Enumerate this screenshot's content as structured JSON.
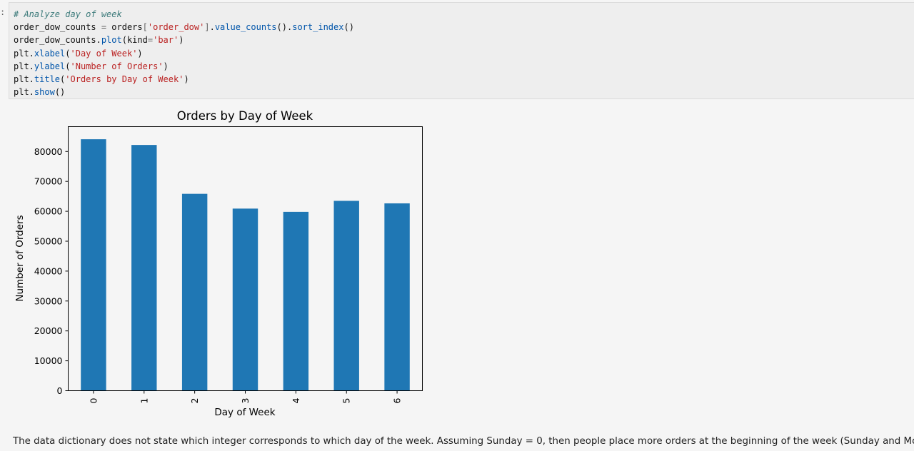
{
  "cell": {
    "prompt": ":",
    "code_lines": [
      [
        {
          "t": "# Analyze day of week",
          "c": "cm"
        }
      ],
      [
        {
          "t": "order_dow_counts ",
          "c": ""
        },
        {
          "t": "=",
          "c": "op"
        },
        {
          "t": " orders",
          "c": ""
        },
        {
          "t": "[",
          "c": "op"
        },
        {
          "t": "'order_dow'",
          "c": "st"
        },
        {
          "t": "]",
          "c": "op"
        },
        {
          "t": ".",
          "c": ""
        },
        {
          "t": "value_counts",
          "c": "fn"
        },
        {
          "t": "().",
          "c": ""
        },
        {
          "t": "sort_index",
          "c": "fn"
        },
        {
          "t": "()",
          "c": ""
        }
      ],
      [
        {
          "t": "order_dow_counts.",
          "c": ""
        },
        {
          "t": "plot",
          "c": "fn"
        },
        {
          "t": "(kind",
          "c": ""
        },
        {
          "t": "=",
          "c": "op"
        },
        {
          "t": "'bar'",
          "c": "st"
        },
        {
          "t": ")",
          "c": ""
        }
      ],
      [
        {
          "t": "plt.",
          "c": ""
        },
        {
          "t": "xlabel",
          "c": "fn"
        },
        {
          "t": "(",
          "c": ""
        },
        {
          "t": "'Day of Week'",
          "c": "st"
        },
        {
          "t": ")",
          "c": ""
        }
      ],
      [
        {
          "t": "plt.",
          "c": ""
        },
        {
          "t": "ylabel",
          "c": "fn"
        },
        {
          "t": "(",
          "c": ""
        },
        {
          "t": "'Number of Orders'",
          "c": "st"
        },
        {
          "t": ")",
          "c": ""
        }
      ],
      [
        {
          "t": "plt.",
          "c": ""
        },
        {
          "t": "title",
          "c": "fn"
        },
        {
          "t": "(",
          "c": ""
        },
        {
          "t": "'Orders by Day of Week'",
          "c": "st"
        },
        {
          "t": ")",
          "c": ""
        }
      ],
      [
        {
          "t": "plt.",
          "c": ""
        },
        {
          "t": "show",
          "c": "fn"
        },
        {
          "t": "()",
          "c": ""
        }
      ]
    ]
  },
  "chart_data": {
    "type": "bar",
    "title": "Orders by Day of Week",
    "xlabel": "Day of Week",
    "ylabel": "Number of Orders",
    "categories": [
      "0",
      "1",
      "2",
      "3",
      "4",
      "5",
      "6"
    ],
    "values": [
      84090,
      82185,
      65833,
      60897,
      59810,
      63488,
      62649
    ],
    "ylim": [
      0,
      88300
    ],
    "yticks": [
      0,
      10000,
      20000,
      30000,
      40000,
      50000,
      60000,
      70000,
      80000
    ],
    "bar_color": "#1f77b4",
    "grid": false,
    "legend": false
  },
  "markdown": {
    "text": "The data dictionary does not state which integer corresponds to which day of the week. Assuming Sunday = 0, then people place more orders at the beginning of the week (Sunday and Monday)."
  }
}
